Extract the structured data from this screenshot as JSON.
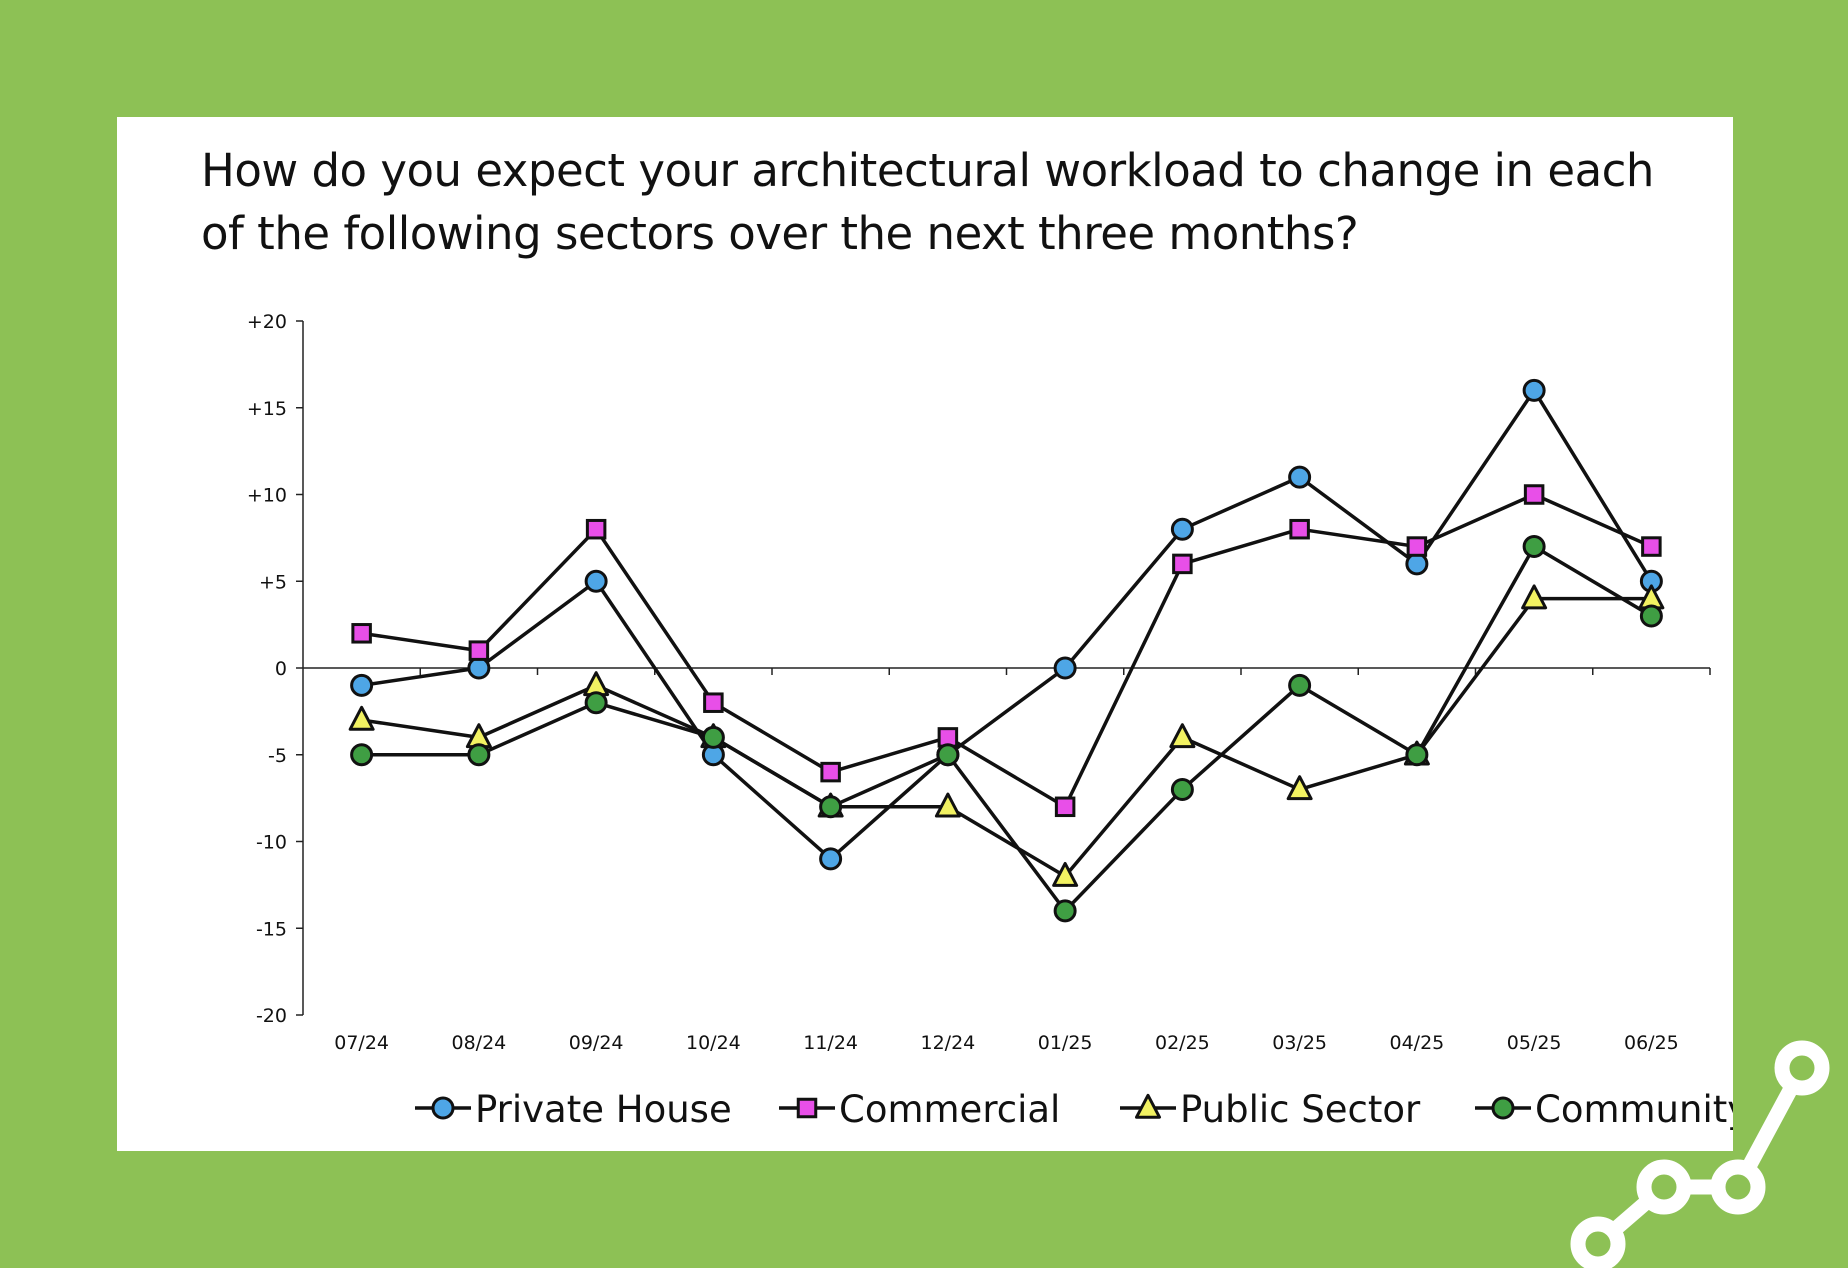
{
  "chart_data": {
    "type": "line",
    "title": "How do you expect your architectural workload to change in each of the following sectors over the next three months?",
    "categories": [
      "07/24",
      "08/24",
      "09/24",
      "10/24",
      "11/24",
      "12/24",
      "01/25",
      "02/25",
      "03/25",
      "04/25",
      "05/25",
      "06/25"
    ],
    "ylim": [
      -20,
      20
    ],
    "yticks": [
      "+20",
      "+15",
      "+10",
      "+5",
      "0",
      "-5",
      "-10",
      "-15",
      "-20"
    ],
    "ytick_values": [
      20,
      15,
      10,
      5,
      0,
      -5,
      -10,
      -15,
      -20
    ],
    "grid": false,
    "legend_position": "bottom",
    "series": [
      {
        "name": "Private House",
        "marker": "circle",
        "color": "#4ea6e6",
        "values": [
          -1,
          0,
          5,
          -5,
          -11,
          -5,
          0,
          8,
          11,
          6,
          16,
          5
        ]
      },
      {
        "name": "Commercial",
        "marker": "square",
        "color": "#e84fe8",
        "values": [
          2,
          1,
          8,
          -2,
          -6,
          -4,
          -8,
          6,
          8,
          7,
          10,
          7
        ]
      },
      {
        "name": "Public Sector",
        "marker": "triangle",
        "color": "#f2f262",
        "values": [
          -3,
          -4,
          -1,
          -4,
          -8,
          -8,
          -12,
          -4,
          -7,
          -5,
          4,
          4
        ]
      },
      {
        "name": "Community",
        "marker": "circle",
        "color": "#3f9e43",
        "values": [
          -5,
          -5,
          -2,
          -4,
          -8,
          -5,
          -14,
          -7,
          -1,
          -5,
          7,
          3
        ]
      }
    ]
  }
}
